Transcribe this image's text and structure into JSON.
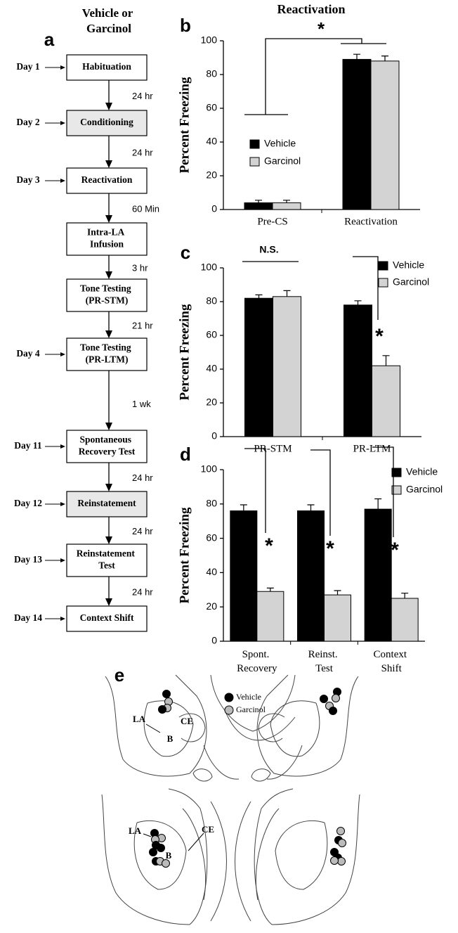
{
  "flow": {
    "panel": "a",
    "header": "Vehicle or\nGarcinol",
    "steps": [
      {
        "label": "Habituation",
        "day": "Day 1"
      },
      {
        "label": "Conditioning",
        "day": "Day 2",
        "shaded": true
      },
      {
        "label": "Reactivation",
        "day": "Day 3"
      },
      {
        "label": "Intra-LA\nInfusion"
      },
      {
        "label": "Tone Testing\n(PR-STM)"
      },
      {
        "label": "Tone Testing\n(PR-LTM)",
        "day": "Day 4"
      },
      {
        "label": "Spontaneous\nRecovery Test",
        "day": "Day 11"
      },
      {
        "label": "Reinstatement",
        "day": "Day 12",
        "shaded": true
      },
      {
        "label": "Reinstatement\nTest",
        "day": "Day 13"
      },
      {
        "label": "Context Shift",
        "day": "Day 14"
      }
    ],
    "intervals": [
      "24 hr",
      "24 hr",
      "60 Min",
      "3 hr",
      "21 hr",
      "1 wk",
      "24 hr",
      "24 hr",
      "24 hr"
    ]
  },
  "chart_data": [
    {
      "type": "bar",
      "panel": "b",
      "title": "Reactivation",
      "ylabel": "Percent Freezing",
      "categories": [
        "Pre-CS",
        "Reactivation"
      ],
      "series": [
        {
          "name": "Vehicle",
          "color": "#000000",
          "values": [
            4,
            89
          ],
          "errors": [
            1.5,
            3
          ]
        },
        {
          "name": "Garcinol",
          "color": "#d3d3d3",
          "values": [
            4,
            88
          ],
          "errors": [
            1.5,
            3
          ]
        }
      ],
      "ylim": [
        0,
        100
      ],
      "yticks": [
        0,
        20,
        40,
        60,
        80,
        100
      ],
      "annotations": [
        "*"
      ]
    },
    {
      "type": "bar",
      "panel": "c",
      "ylabel": "Percent Freezing",
      "categories": [
        "PR-STM",
        "PR-LTM"
      ],
      "series": [
        {
          "name": "Vehicle",
          "color": "#000000",
          "values": [
            82,
            78
          ],
          "errors": [
            2,
            2.5
          ]
        },
        {
          "name": "Garcinol",
          "color": "#d3d3d3",
          "values": [
            83,
            42
          ],
          "errors": [
            3.5,
            6
          ]
        }
      ],
      "ylim": [
        0,
        100
      ],
      "yticks": [
        0,
        20,
        40,
        60,
        80,
        100
      ],
      "annotations": [
        "N.S.",
        "*"
      ]
    },
    {
      "type": "bar",
      "panel": "d",
      "ylabel": "Percent Freezing",
      "categories": [
        "Spont.\nRecovery",
        "Reinst.\nTest",
        "Context\nShift"
      ],
      "series": [
        {
          "name": "Vehicle",
          "color": "#000000",
          "values": [
            76,
            76,
            77
          ],
          "errors": [
            3.5,
            3.5,
            6
          ]
        },
        {
          "name": "Garcinol",
          "color": "#d3d3d3",
          "values": [
            29,
            27,
            25
          ],
          "errors": [
            2,
            2.5,
            3
          ]
        }
      ],
      "ylim": [
        0,
        100
      ],
      "yticks": [
        0,
        20,
        40,
        60,
        80,
        100
      ],
      "annotations": [
        "*",
        "*",
        "*"
      ]
    }
  ],
  "anatomy": {
    "panel": "e",
    "legend": [
      "Vehicle",
      "Garcinol"
    ],
    "top_labels": [
      "LA",
      "CE",
      "B"
    ],
    "bottom_labels": [
      "LA",
      "CE",
      "B"
    ]
  }
}
